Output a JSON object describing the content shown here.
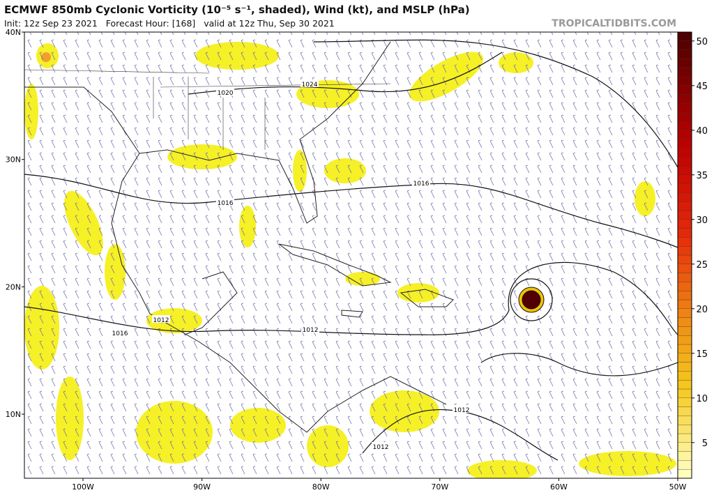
{
  "header": {
    "title": "ECMWF 850mb Cyclonic Vorticity (10⁻⁵ s⁻¹, shaded), Wind (kt), and MSLP (hPa)",
    "subtitle": "Init: 12z Sep 23 2021   Forecast Hour: [168]   valid at 12z Thu, Sep 30 2021",
    "credit": "TROPICALTIDBITS.COM"
  },
  "map": {
    "lat_ticks": [
      {
        "value": 40,
        "label": "40N"
      },
      {
        "value": 30,
        "label": "30N"
      },
      {
        "value": 20,
        "label": "20N"
      },
      {
        "value": 10,
        "label": "10N"
      }
    ],
    "lon_ticks": [
      {
        "value": 100,
        "label": "100W"
      },
      {
        "value": 90,
        "label": "90W"
      },
      {
        "value": 80,
        "label": "80W"
      },
      {
        "value": 70,
        "label": "70W"
      },
      {
        "value": 60,
        "label": "60W"
      },
      {
        "value": 50,
        "label": "50W"
      }
    ],
    "isobar_labels": [
      "1020",
      "1024",
      "1016",
      "1016",
      "1012",
      "1016",
      "1012",
      "1012",
      "1012"
    ]
  },
  "colorbar": {
    "lim": [
      1,
      51
    ],
    "ticks": [
      5,
      10,
      15,
      20,
      25,
      30,
      35,
      40,
      45,
      50
    ]
  }
}
